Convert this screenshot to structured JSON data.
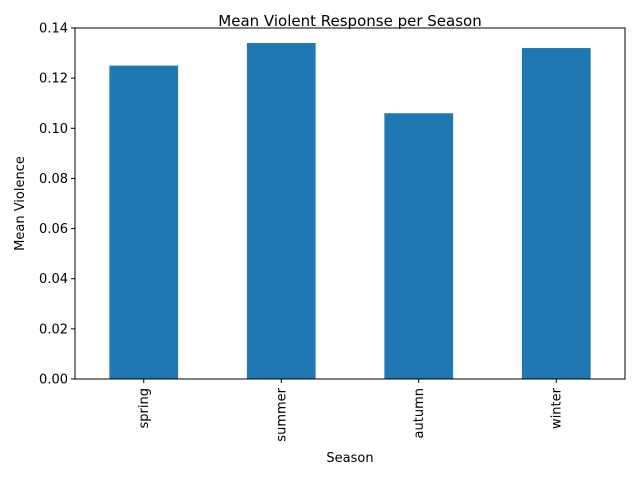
{
  "chart_data": {
    "type": "bar",
    "title": "Mean Violent Response per Season",
    "xlabel": "Season",
    "ylabel": "Mean Violence",
    "categories": [
      "spring",
      "summer",
      "autumn",
      "winter"
    ],
    "series": [
      {
        "values": [
          0.125,
          0.134,
          0.106,
          0.132
        ]
      }
    ],
    "ylim": [
      0,
      0.14
    ],
    "yticks": [
      "0.00",
      "0.02",
      "0.04",
      "0.06",
      "0.08",
      "0.10",
      "0.12",
      "0.14"
    ],
    "bar_color": "#1f77b4",
    "grid": false,
    "legend": "none"
  }
}
